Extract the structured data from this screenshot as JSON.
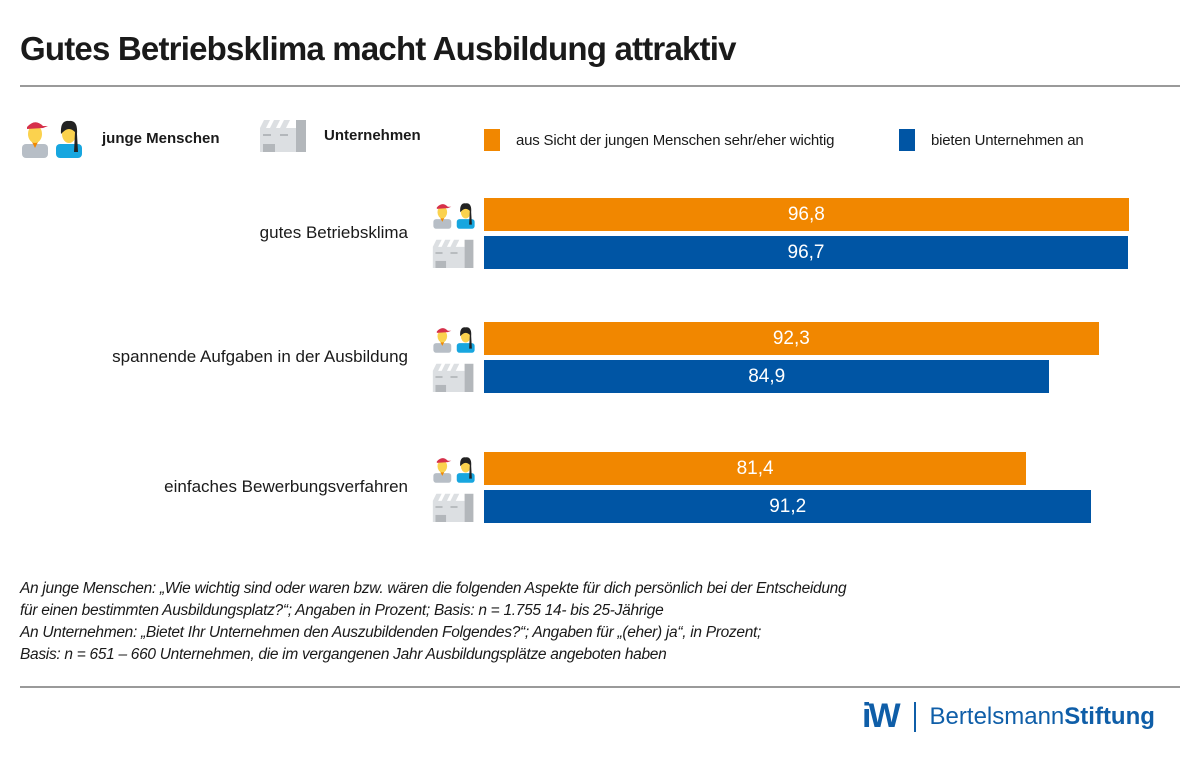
{
  "title": "Gutes Betriebsklima macht Ausbildung attraktiv",
  "legend": {
    "groups": [
      {
        "label": "junge Menschen",
        "icon": "young-people-icon"
      },
      {
        "label": "Unternehmen",
        "icon": "factory-icon"
      }
    ],
    "series": [
      {
        "label": "aus Sicht der jungen Menschen sehr/eher wichtig",
        "color": "#f18700"
      },
      {
        "label": "bieten Unternehmen an",
        "color": "#0055a4"
      }
    ]
  },
  "chart_data": {
    "type": "bar",
    "orientation": "horizontal",
    "title": "Gutes Betriebsklima macht Ausbildung attraktiv",
    "xlabel": "",
    "ylabel": "",
    "xlim": [
      0,
      100
    ],
    "grid": false,
    "legend_position": "top",
    "categories": [
      "gutes Betriebsklima",
      "spannende Aufgaben in der Ausbildung",
      "einfaches Bewerbungsverfahren"
    ],
    "series": [
      {
        "name": "aus Sicht der jungen Menschen sehr/eher wichtig",
        "color": "#f18700",
        "values": [
          96.8,
          92.3,
          81.4
        ],
        "labels": [
          "96,8",
          "92,3",
          "81,4"
        ]
      },
      {
        "name": "bieten Unternehmen an",
        "color": "#0055a4",
        "values": [
          96.7,
          84.9,
          91.2
        ],
        "labels": [
          "96,7",
          "84,9",
          "91,2"
        ]
      }
    ]
  },
  "footnote": [
    "An junge Menschen: „Wie wichtig sind oder waren bzw. wären die folgenden Aspekte für dich persönlich bei der Entscheidung",
    "für einen bestimmten Ausbildungsplatz?“; Angaben in Prozent; Basis: n = 1.755 14- bis 25-Jährige",
    "An Unternehmen: „Bietet Ihr Unternehmen den Auszubildenden Folgendes?“; Angaben für „(eher) ja“, in Prozent;",
    "Basis: n = 651 – 660 Unternehmen, die im vergangenen Jahr Ausbildungsplätze angeboten haben"
  ],
  "logos": {
    "iw": "iW",
    "bertelsmann_light": "Bertelsmann",
    "bertelsmann_bold": "Stiftung"
  }
}
